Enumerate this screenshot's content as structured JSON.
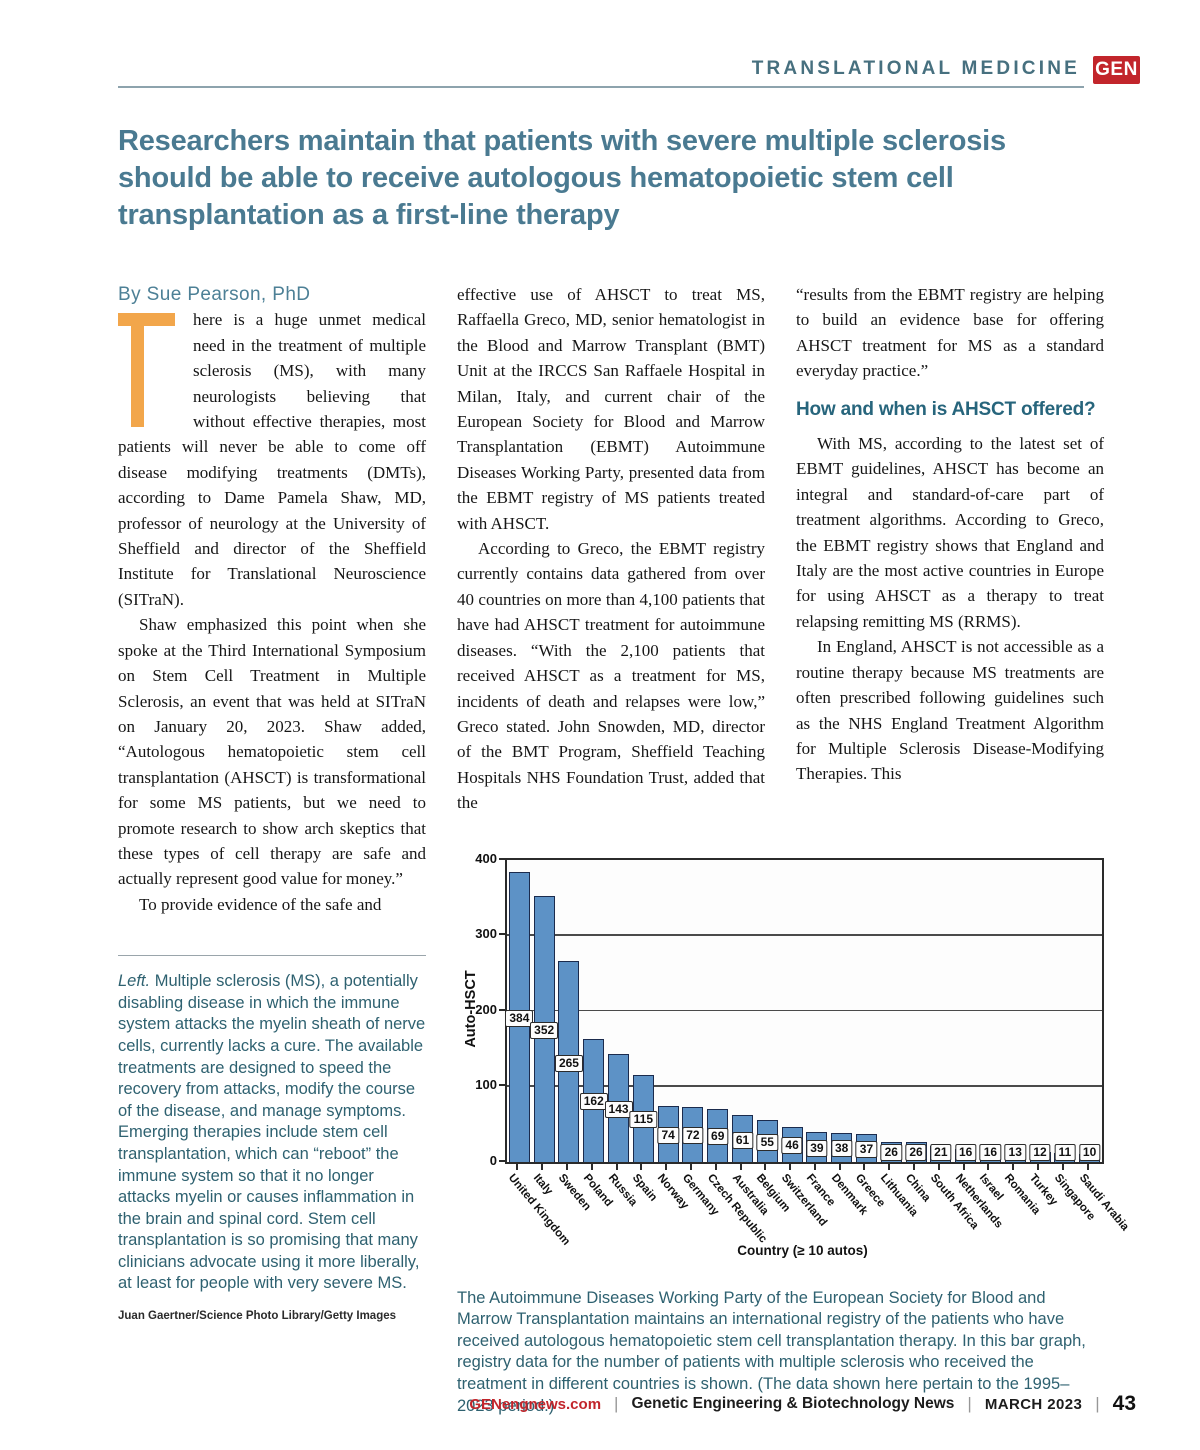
{
  "page": {
    "section_header": "TRANSLATIONAL MEDICINE",
    "logo_text": "GEN",
    "headline": "Researchers maintain that patients with severe multiple sclerosis should be able to receive autologous hematopoietic stem cell transplantation as a first-line therapy",
    "byline": "By Sue Pearson, PhD"
  },
  "article": {
    "col1": {
      "dropcap": "T",
      "para1_rest": "here is a huge unmet medical need in the treatment of multiple sclerosis (MS), with many neurologists believing that without effective therapies, most patients will never be able to come off disease modifying treatments (DMTs), according to Dame Pamela Shaw, MD, professor of neurology at the University of Sheffield and director of the Sheffield Institute for Translational Neuroscience (SITraN).",
      "para2": "Shaw emphasized this point when she spoke at the Third International Symposium on Stem Cell Treatment in Multiple Sclerosis, an event that was held at SITraN on January 20, 2023. Shaw added, “Autologous hematopoietic stem cell transplantation (AHSCT) is transformational for some MS patients, but we need to promote research to show arch skeptics that these types of cell therapy are safe and actually represent good value for money.”",
      "para3": "To provide evidence of the safe and"
    },
    "col2": {
      "para1": "effective use of AHSCT to treat MS, Raffaella Greco, MD, senior hematologist in the Blood and Marrow Transplant (BMT) Unit at the IRCCS San Raffaele Hospital in Milan, Italy, and current chair of the European Society for Blood and Marrow Transplantation (EBMT) Autoimmune Diseases Working Party, presented data from the EBMT registry of MS patients treated with AHSCT.",
      "para2": "According to Greco, the EBMT registry currently contains data gathered from over 40 countries on more than 4,100 patients that have had AHSCT treatment for autoimmune diseases. “With the 2,100 patients that received AHSCT as a treatment for MS, incidents of death and relapses were low,” Greco stated. John Snowden, MD, director of the BMT Program, Sheffield Teaching Hospitals NHS Foundation Trust, added that the"
    },
    "col3": {
      "para1": "“results from the EBMT registry are helping to build an evidence base for offering AHSCT treatment for MS as a standard everyday practice.”",
      "heading": "How and when is AHSCT offered?",
      "para2": "With MS, according to the latest set of EBMT guidelines, AHSCT has become an integral and standard-of-care part of treatment algorithms. According to Greco, the EBMT registry shows that England and Italy are the most active countries in Europe for using AHSCT as a therapy to treat relapsing remitting MS (RRMS).",
      "para3": "In England, AHSCT is not accessible as a routine therapy because MS treatments are often prescribed following guidelines such as the NHS England Treatment Algorithm for Multiple Sclerosis Disease-Modifying Therapies. This"
    }
  },
  "photo_caption": {
    "lead": "Left.",
    "body": " Multiple sclerosis (MS), a potentially disabling disease in which the immune system attacks the myelin sheath of nerve cells, currently lacks a cure. The available treatments are designed to speed the recovery from attacks, modify the course of the disease, and manage symptoms. Emerging therapies include stem cell transplantation, which can “reboot” the immune system so that it no longer attacks myelin or causes inflammation in the brain and spinal cord. Stem cell transplantation is so promising that many clinicians advocate using it more liberally, at least for people with very severe MS.",
    "credit": "Juan Gaertner/Science Photo Library/Getty Images"
  },
  "figure_caption": "The Autoimmune Diseases Working Party of the European Society for Blood and Marrow Transplantation maintains an international registry of the patients who have received autologous hematopoietic stem cell transplantation therapy. In this bar graph, registry data for the number of patients with multiple sclerosis who received the treatment in different countries is shown. (The data shown here pertain to the 1995–2023 period.)",
  "chart_data": {
    "type": "bar",
    "title": "",
    "xlabel": "Country  (≥ 10 autos)",
    "ylabel": "Auto-HSCT",
    "ylim": [
      0,
      400
    ],
    "yticks": [
      0,
      100,
      200,
      300,
      400
    ],
    "grid": true,
    "legend": "none",
    "categories": [
      "United Kingdom",
      "Italy",
      "Sweden",
      "Poland",
      "Russia",
      "Spain",
      "Norway",
      "Germany",
      "Czech Republic",
      "Australia",
      "Belgium",
      "Switzerland",
      "France",
      "Denmark",
      "Greece",
      "Lithuania",
      "China",
      "South Africa",
      "Netherlands",
      "Israel",
      "Romania",
      "Turkey",
      "Singapore",
      "Saudi Arabia"
    ],
    "values": [
      384,
      352,
      265,
      162,
      143,
      115,
      74,
      72,
      69,
      61,
      55,
      46,
      39,
      38,
      37,
      26,
      26,
      21,
      16,
      16,
      13,
      12,
      11,
      10
    ],
    "bar_color": "#5d92c6",
    "bar_border_color": "#1b2b4d"
  },
  "footer": {
    "site": "GENengnews.com",
    "publication": "Genetic Engineering & Biotechnology News",
    "issue": "MARCH 2023",
    "page_number": "43",
    "separator": "|"
  },
  "colors": {
    "headline_teal": "#4a7a91",
    "caption_teal": "#2e6170",
    "dropcap_orange": "#f2a64b",
    "brand_red": "#c2252b",
    "bar_fill": "#5d92c6",
    "bar_border": "#1b2b4d"
  }
}
